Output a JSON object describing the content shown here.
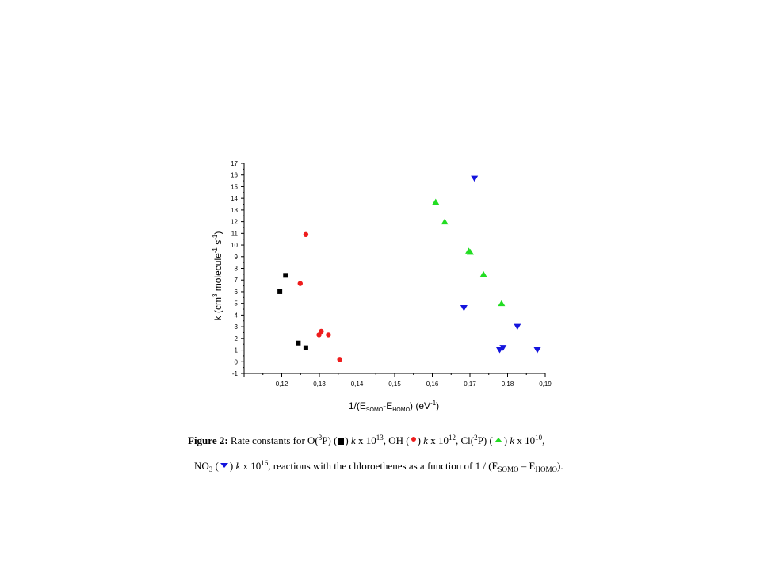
{
  "chart_data": {
    "type": "scatter",
    "xlabel_parts": [
      "1/(E",
      "SOMO",
      "-E",
      "HOMO",
      ") (eV",
      "-1",
      ")"
    ],
    "ylabel_parts": [
      "k (cm",
      "3",
      " molecule",
      "-1",
      " s",
      "-1",
      ")"
    ],
    "xlim": [
      0.11,
      0.19
    ],
    "ylim": [
      -1,
      17
    ],
    "xticks": [
      "0,12",
      "0,13",
      "0,14",
      "0,15",
      "0,16",
      "0,17",
      "0,18",
      "0,19"
    ],
    "xtick_values": [
      0.12,
      0.13,
      0.14,
      0.15,
      0.16,
      0.17,
      0.18,
      0.19
    ],
    "yticks": [
      "-1",
      "0",
      "1",
      "2",
      "3",
      "4",
      "5",
      "6",
      "7",
      "8",
      "9",
      "10",
      "11",
      "12",
      "13",
      "14",
      "15",
      "16",
      "17"
    ],
    "ytick_values": [
      -1,
      0,
      1,
      2,
      3,
      4,
      5,
      6,
      7,
      8,
      9,
      10,
      11,
      12,
      13,
      14,
      15,
      16,
      17
    ],
    "series": [
      {
        "marker": "square",
        "color": "#000000",
        "x": [
          0.1195,
          0.121,
          0.1244,
          0.1264
        ],
        "y": [
          6.0,
          7.4,
          1.6,
          1.2
        ]
      },
      {
        "marker": "circle",
        "color": "#ee1c1c",
        "x": [
          0.1264,
          0.1249,
          0.1305,
          0.1299,
          0.1324,
          0.1354
        ],
        "y": [
          10.9,
          6.7,
          2.6,
          2.3,
          2.3,
          0.2
        ]
      },
      {
        "marker": "triangle-up",
        "color": "#22dd22",
        "x": [
          0.1609,
          0.1633,
          0.1697,
          0.1701,
          0.1736,
          0.1784
        ],
        "y": [
          13.7,
          12.0,
          9.5,
          9.4,
          7.5,
          5.0
        ]
      },
      {
        "marker": "triangle-down",
        "color": "#1414dd",
        "x": [
          0.1712,
          0.1684,
          0.1826,
          0.1779,
          0.1788,
          0.1879
        ],
        "y": [
          15.7,
          4.6,
          3.0,
          1.0,
          1.2,
          1.0
        ]
      }
    ]
  },
  "caption": {
    "label": "Figure 2:",
    "line1_a": " Rate constants for  O(",
    "line1_b": "3",
    "line1_c": "P) (",
    "line1_d": ") ",
    "line1_k1": "k",
    "line1_e": " x 10",
    "line1_f": "13",
    "line1_g": ", OH (",
    "line1_h": ") ",
    "line1_k2": "k",
    "line1_i": " x 10",
    "line1_j": "12",
    "line1_k": ", Cl(",
    "line1_l": "2",
    "line1_m": "P) (",
    "line1_n": ") ",
    "line1_k3": "k",
    "line1_o": " x 10",
    "line1_p": "10",
    "line1_q": ",",
    "line2_a": "NO",
    "line2_b": "3",
    "line2_c": " (",
    "line2_d": ") ",
    "line2_k4": "k",
    "line2_e": " x 10",
    "line2_f": "16",
    "line2_g": ", reactions with the chloroethenes as a function of  1 / (E",
    "line2_h": "SOMO",
    "line2_i": " – E",
    "line2_j": "HOMO",
    "line2_k": ")."
  }
}
